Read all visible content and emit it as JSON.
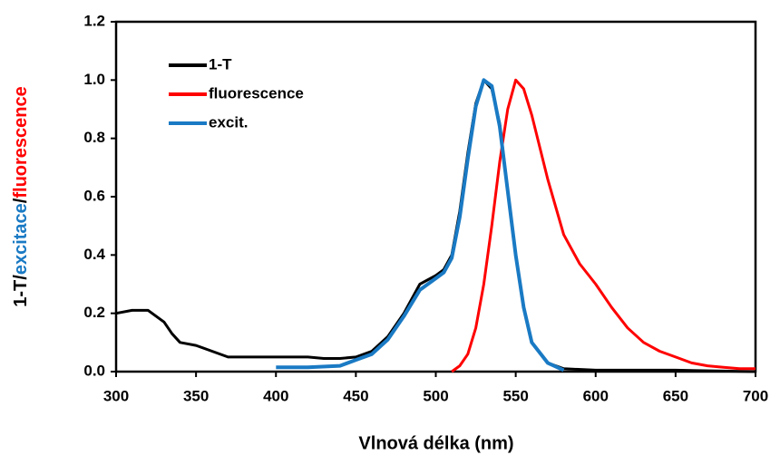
{
  "chart_data": {
    "type": "line",
    "x_label": "Vlnová délka (nm)",
    "y_label_parts": [
      {
        "text": "1-T/",
        "color": "#000000"
      },
      {
        "text": "excitace",
        "color": "#1a7ac4"
      },
      {
        "text": "/",
        "color": "#000000"
      },
      {
        "text": "fluorescence",
        "color": "#ff0000"
      }
    ],
    "xlim": [
      300,
      700
    ],
    "xticks": [
      300,
      350,
      400,
      450,
      500,
      550,
      600,
      650,
      700
    ],
    "ylim": [
      0,
      1.2
    ],
    "yticks": [
      {
        "value": 0,
        "label": "0.0"
      },
      0.2,
      0.4,
      0.6,
      0.8,
      {
        "value": 1,
        "label": "1.0"
      },
      1.2
    ],
    "legend": "upper left",
    "series": [
      {
        "name": "1-T",
        "color": "#000000",
        "x": [
          300,
          310,
          320,
          330,
          335,
          340,
          350,
          360,
          370,
          380,
          400,
          410,
          420,
          430,
          440,
          450,
          460,
          470,
          480,
          490,
          500,
          505,
          510,
          515,
          520,
          525,
          530,
          535,
          540,
          545,
          550,
          555,
          560,
          570,
          580,
          600,
          650,
          700
        ],
        "values": [
          0.2,
          0.21,
          0.21,
          0.17,
          0.13,
          0.1,
          0.09,
          0.07,
          0.05,
          0.05,
          0.05,
          0.05,
          0.05,
          0.045,
          0.045,
          0.05,
          0.07,
          0.12,
          0.2,
          0.3,
          0.33,
          0.35,
          0.4,
          0.55,
          0.75,
          0.92,
          1.0,
          0.97,
          0.85,
          0.62,
          0.4,
          0.22,
          0.1,
          0.03,
          0.01,
          0.005,
          0.005,
          0.0
        ]
      },
      {
        "name": "fluorescence",
        "color": "#ff0000",
        "x": [
          510,
          515,
          520,
          525,
          530,
          535,
          540,
          545,
          550,
          555,
          560,
          570,
          580,
          590,
          600,
          610,
          620,
          630,
          640,
          650,
          660,
          670,
          680,
          690,
          700
        ],
        "values": [
          0.0,
          0.02,
          0.06,
          0.15,
          0.3,
          0.5,
          0.72,
          0.9,
          1.0,
          0.97,
          0.88,
          0.66,
          0.47,
          0.37,
          0.3,
          0.22,
          0.15,
          0.1,
          0.07,
          0.05,
          0.03,
          0.02,
          0.015,
          0.01,
          0.01
        ]
      },
      {
        "name": "excit.",
        "color": "#1a7ac4",
        "x": [
          400,
          420,
          440,
          450,
          460,
          470,
          480,
          490,
          500,
          505,
          510,
          515,
          520,
          525,
          530,
          535,
          540,
          545,
          550,
          555,
          560,
          570,
          580
        ],
        "values": [
          0.015,
          0.015,
          0.02,
          0.04,
          0.06,
          0.11,
          0.19,
          0.28,
          0.32,
          0.34,
          0.39,
          0.53,
          0.73,
          0.91,
          1.0,
          0.98,
          0.84,
          0.62,
          0.4,
          0.22,
          0.1,
          0.03,
          0.005
        ]
      }
    ]
  }
}
